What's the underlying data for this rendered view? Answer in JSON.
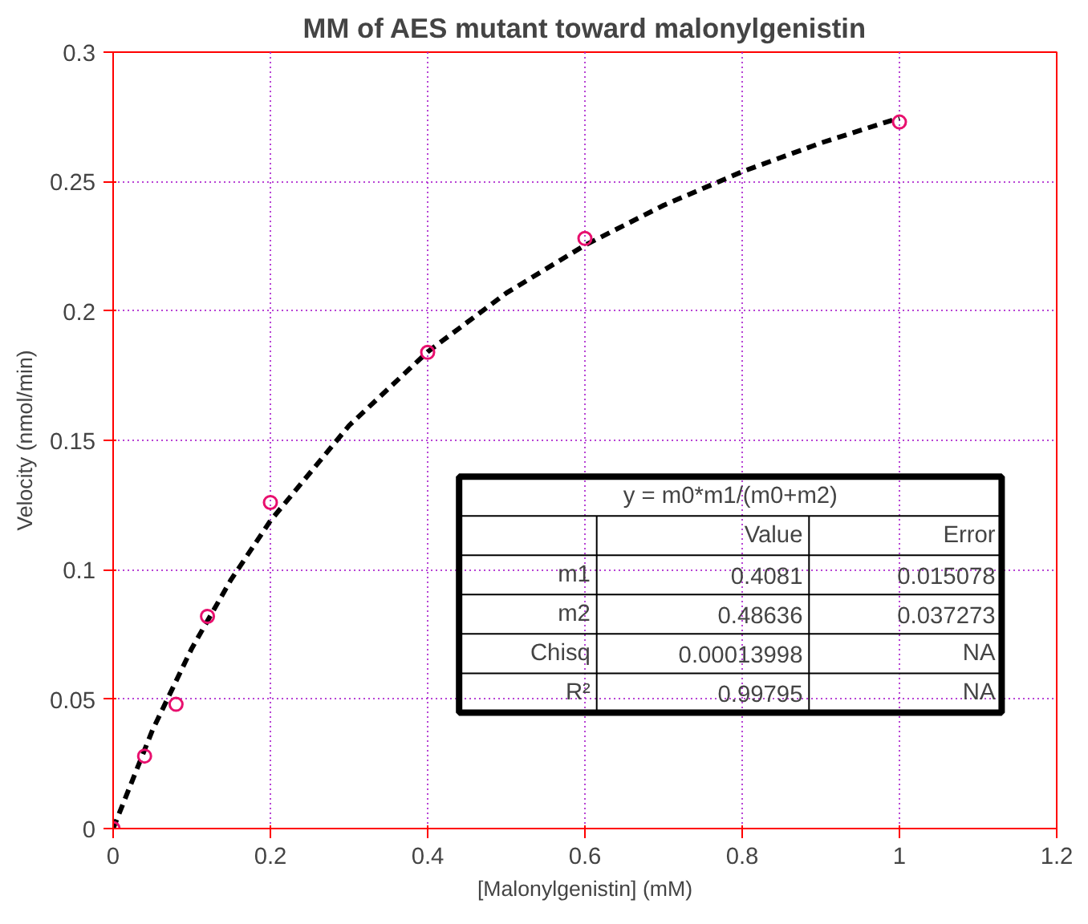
{
  "chart_data": {
    "type": "scatter",
    "title": "MM of AES mutant toward malonylgenistin",
    "xlabel": "[Malonylgenistin] (mM)",
    "ylabel": "Velocity (nmol/min)",
    "xlim": [
      0,
      1.2
    ],
    "ylim": [
      0,
      0.3
    ],
    "xticks": [
      0,
      0.2,
      0.4,
      0.6,
      0.8,
      1,
      1.2
    ],
    "yticks": [
      0,
      0.05,
      0.1,
      0.15,
      0.2,
      0.25,
      0.3
    ],
    "grid": true,
    "series": [
      {
        "type": "line",
        "line_style": "dashed",
        "marker": "none",
        "color": "#000000",
        "x": [
          0,
          0.05,
          0.1,
          0.15,
          0.2,
          0.3,
          0.4,
          0.5,
          0.6,
          0.7,
          0.8,
          0.9,
          1.0
        ],
        "values": [
          0,
          0.038,
          0.0696,
          0.0962,
          0.1189,
          0.1557,
          0.1842,
          0.2069,
          0.2254,
          0.2408,
          0.2538,
          0.2649,
          0.2746
        ]
      },
      {
        "type": "scatter",
        "marker": "circle",
        "color": "#e8106e",
        "x": [
          0,
          0.04,
          0.08,
          0.12,
          0.2,
          0.4,
          0.6,
          1.0
        ],
        "values": [
          0,
          0.028,
          0.048,
          0.082,
          0.126,
          0.184,
          0.228,
          0.273
        ]
      }
    ],
    "annotations": [
      "y = m0*m1/(m0+m2)",
      "Value",
      "Error",
      "m1",
      "0.4081",
      "0.015078",
      "m2",
      "0.48636",
      "0.037273",
      "Chisq",
      "0.00013998",
      "NA",
      "R²",
      "0.99795",
      "NA"
    ]
  }
}
